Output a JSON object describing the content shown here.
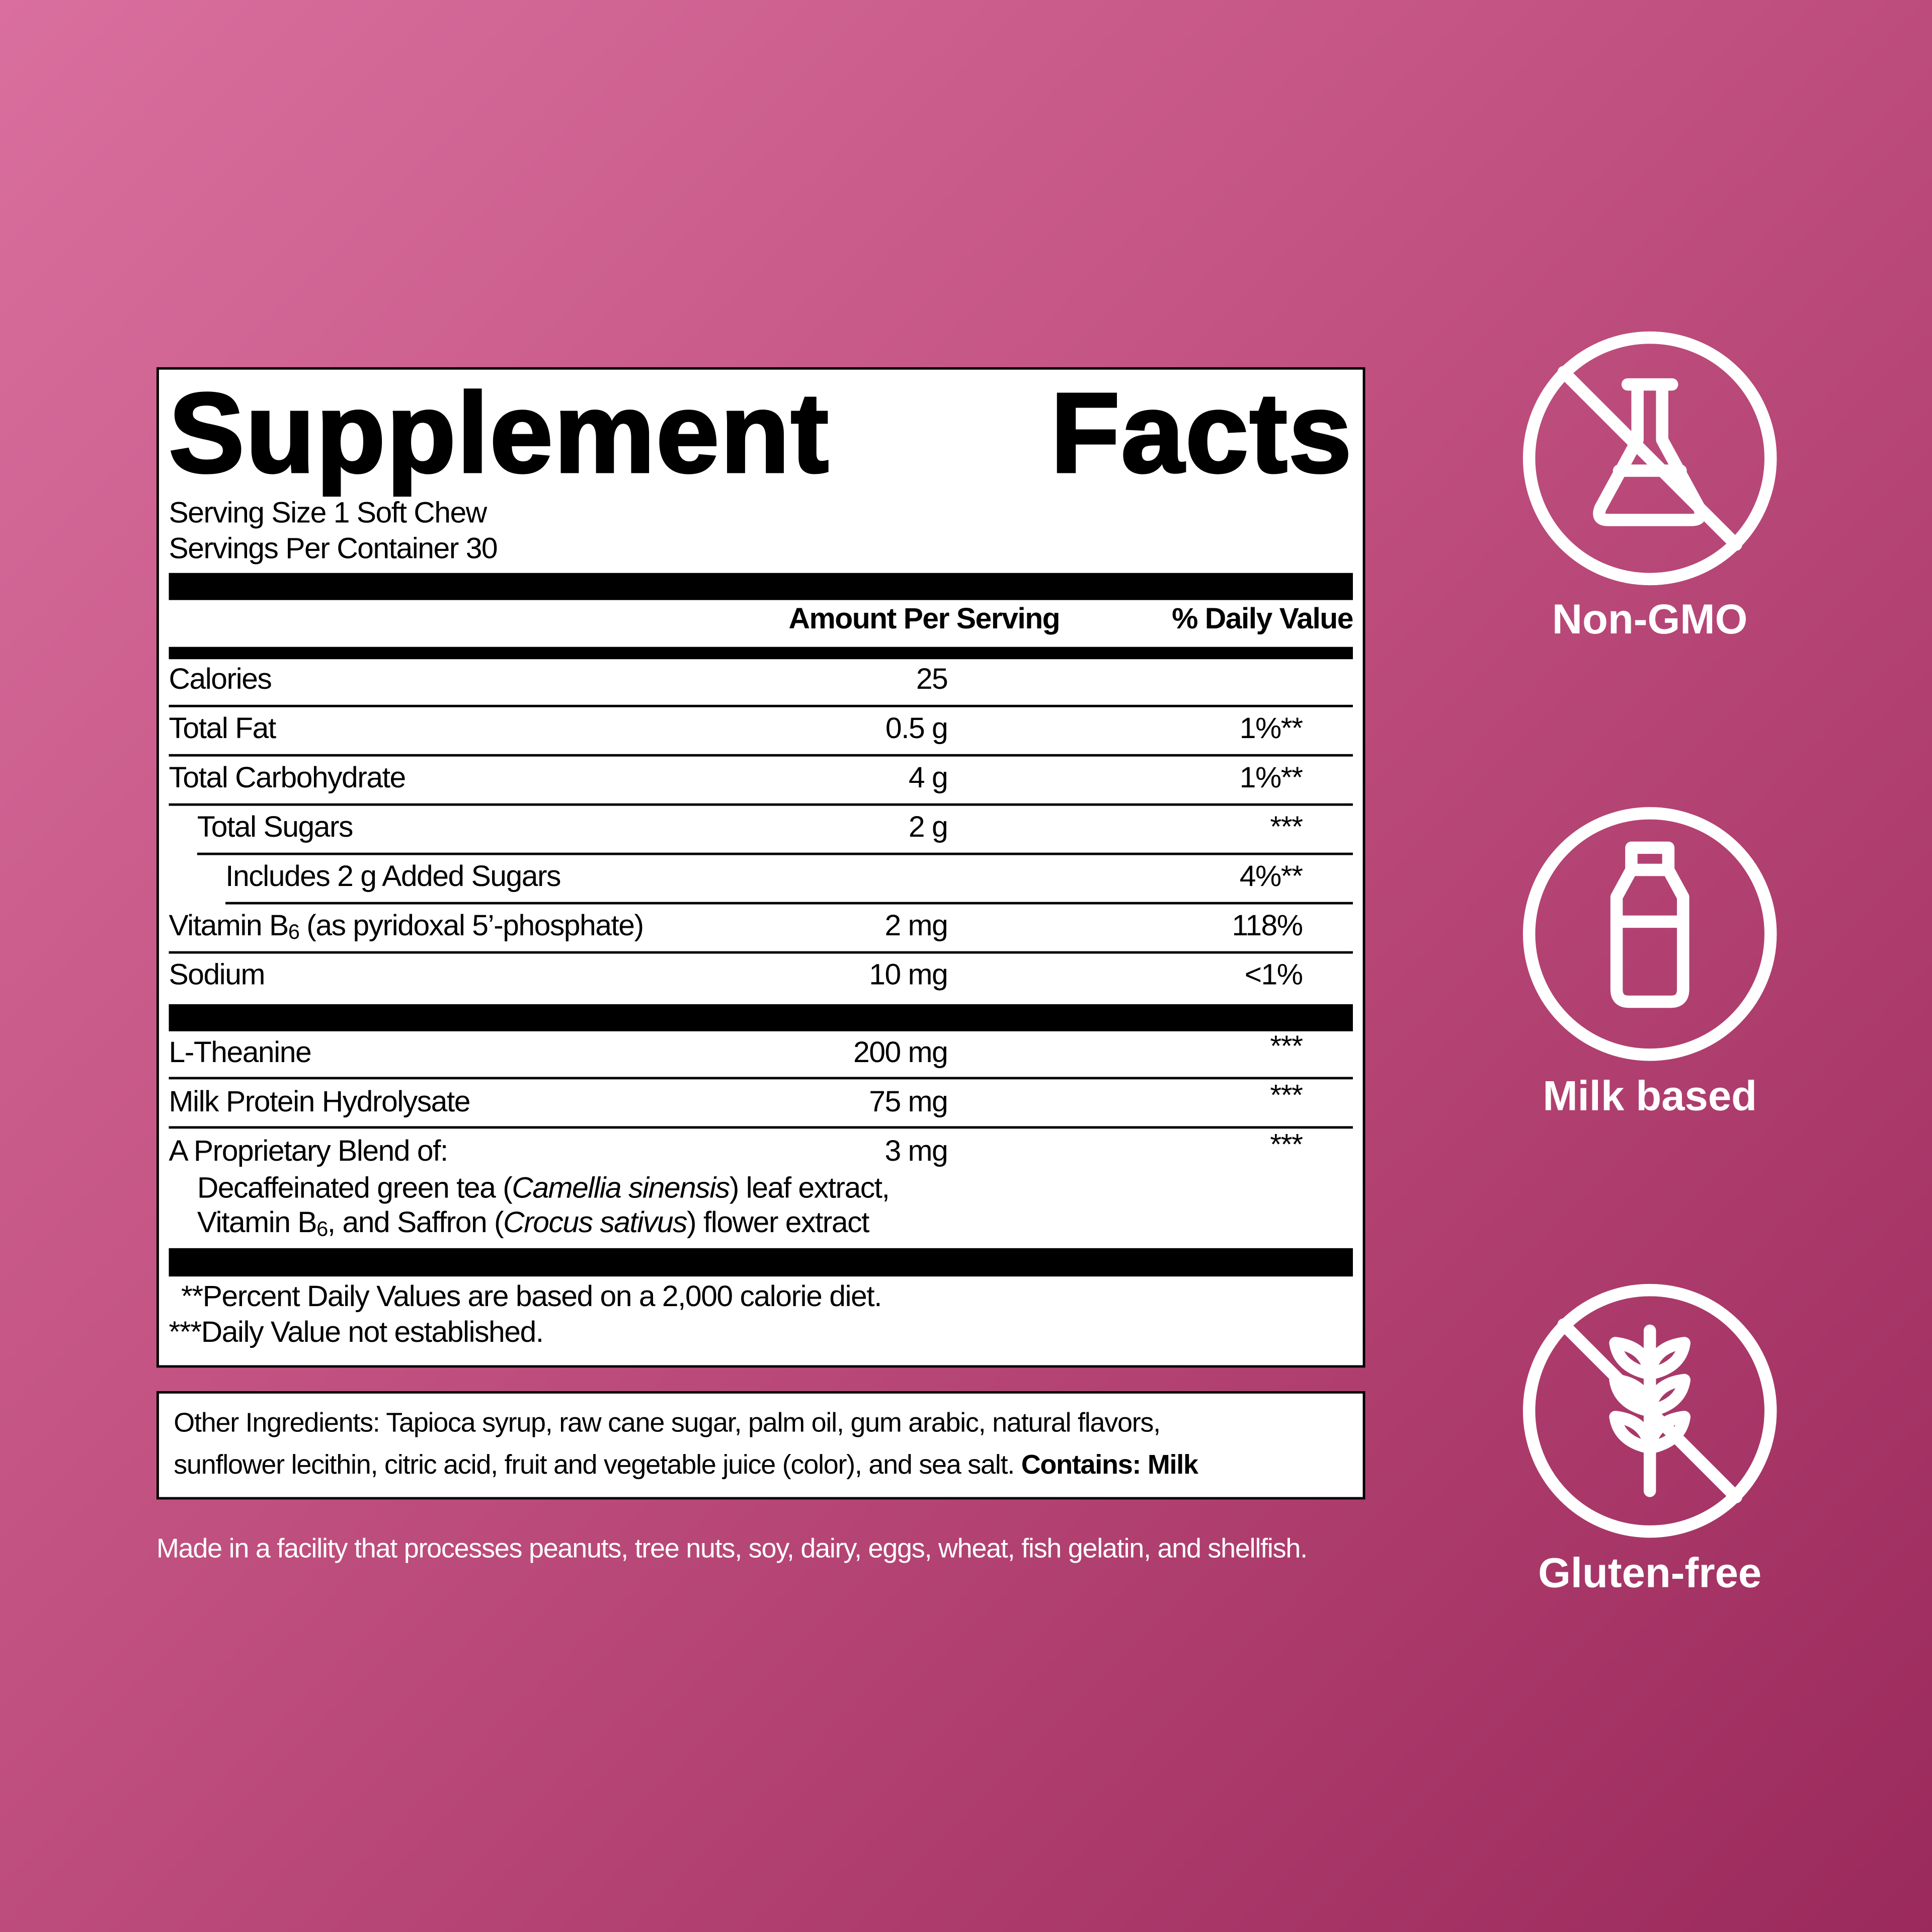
{
  "panel": {
    "title": "Supplement Facts",
    "serving": [
      "Serving Size 1 Soft Chew",
      "Servings Per Container 30"
    ],
    "headers": [
      "Amount Per Serving",
      "% Daily Value"
    ],
    "rows": [
      {
        "name": "Calories",
        "amount": "25"
      },
      {
        "name": "Total Fat",
        "amount": "0.5 g",
        "dv": "1%**"
      },
      {
        "name": "Total Carbohydrate",
        "amount": "4 g",
        "dv": "1%**"
      },
      {
        "name": "Total Sugars",
        "amount": "2 g",
        "dv": "***"
      },
      {
        "name": "Includes 2 g Added Sugars",
        "dv": "4%**"
      },
      {
        "name": [
          "Vitamin B",
          "6",
          " (as pyridoxal 5’-phosphate)"
        ],
        "amount": "2 mg",
        "dv": "118%"
      },
      {
        "name": "Sodium",
        "amount": "10 mg",
        "dv": "<1%"
      },
      {
        "name": "L-Theanine",
        "amount": "200 mg",
        "dv": "***"
      },
      {
        "name": "Milk Protein Hydrolysate",
        "amount": "75 mg",
        "dv": "***"
      },
      {
        "name": "A Proprietary Blend of:",
        "amount": "3 mg",
        "dv": "***",
        "detail": [
          [
            "Decaffeinated green tea (",
            "Camellia sinensis",
            ") leaf extract,"
          ],
          [
            "Vitamin B",
            "6",
            ", and Saffron (",
            "Crocus sativus",
            ") flower extract"
          ]
        ]
      }
    ],
    "footnotes": [
      "**Percent Daily Values are based on a 2,000 calorie diet.",
      "***Daily Value not established."
    ]
  },
  "other_ingredients": [
    "Other Ingredients: Tapioca syrup, raw cane sugar, palm oil, gum arabic, natural flavors,",
    "sunflower lecithin, citric acid, fruit and vegetable juice (color), and sea salt.",
    "Contains: Milk"
  ],
  "facility_note": "Made in a facility that processes peanuts, tree nuts, soy, dairy, eggs, wheat, fish gelatin, and shellfish.",
  "badges": [
    "Non-GMO",
    "Milk based",
    "Gluten-free"
  ]
}
